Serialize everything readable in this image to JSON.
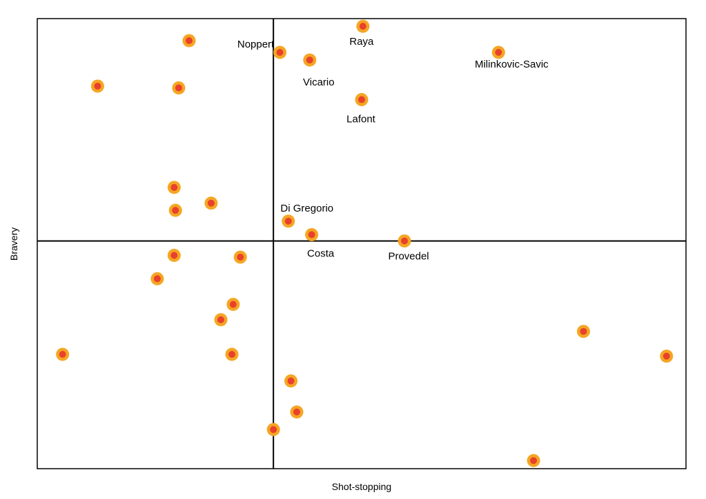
{
  "chart_data": {
    "type": "scatter",
    "title": "",
    "xlabel": "Shot-stopping",
    "ylabel": "Bravery",
    "xlim": [
      0,
      100
    ],
    "ylim": [
      0,
      100
    ],
    "grid": false,
    "reference_lines": {
      "x": 36.4,
      "y": 50.6
    },
    "marker_colors": {
      "outer": "#f5a623",
      "inner": "#e8412c"
    },
    "points": [
      {
        "x": 23.4,
        "y": 95.1,
        "label": ""
      },
      {
        "x": 9.3,
        "y": 85.0,
        "label": ""
      },
      {
        "x": 21.8,
        "y": 84.6,
        "label": ""
      },
      {
        "x": 21.1,
        "y": 62.5,
        "label": ""
      },
      {
        "x": 21.3,
        "y": 57.4,
        "label": ""
      },
      {
        "x": 26.8,
        "y": 59.0,
        "label": ""
      },
      {
        "x": 21.1,
        "y": 47.4,
        "label": ""
      },
      {
        "x": 31.3,
        "y": 47.0,
        "label": ""
      },
      {
        "x": 18.5,
        "y": 42.2,
        "label": ""
      },
      {
        "x": 30.2,
        "y": 36.5,
        "label": ""
      },
      {
        "x": 28.3,
        "y": 33.1,
        "label": ""
      },
      {
        "x": 3.9,
        "y": 25.4,
        "label": ""
      },
      {
        "x": 30.0,
        "y": 25.4,
        "label": ""
      },
      {
        "x": 39.1,
        "y": 19.5,
        "label": ""
      },
      {
        "x": 40.0,
        "y": 12.6,
        "label": ""
      },
      {
        "x": 36.4,
        "y": 8.7,
        "label": ""
      },
      {
        "x": 76.5,
        "y": 1.8,
        "label": ""
      },
      {
        "x": 84.2,
        "y": 30.5,
        "label": ""
      },
      {
        "x": 97.0,
        "y": 25.0,
        "label": ""
      },
      {
        "x": 50.2,
        "y": 98.3,
        "label": "Raya"
      },
      {
        "x": 37.4,
        "y": 92.5,
        "label": "Noppert"
      },
      {
        "x": 42.0,
        "y": 90.8,
        "label": "Vicario"
      },
      {
        "x": 71.1,
        "y": 92.5,
        "label": "Milinkovic-Savic"
      },
      {
        "x": 50.0,
        "y": 82.0,
        "label": "Lafont"
      },
      {
        "x": 38.7,
        "y": 55.0,
        "label": "Di Gregorio"
      },
      {
        "x": 42.3,
        "y": 52.0,
        "label": "Costa"
      },
      {
        "x": 56.6,
        "y": 50.6,
        "label": "Provedel"
      }
    ]
  }
}
